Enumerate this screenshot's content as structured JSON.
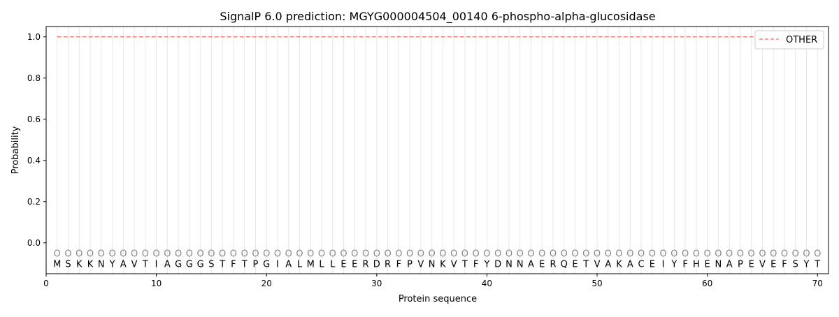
{
  "chart_data": {
    "type": "line",
    "title": "SignalP 6.0 prediction: MGYG000004504_00140 6-phospho-alpha-glucosidase",
    "xlabel": "Protein sequence",
    "ylabel": "Probability",
    "xlim": [
      0,
      71
    ],
    "ylim": [
      -0.15,
      1.05
    ],
    "xticks": [
      0,
      10,
      20,
      30,
      40,
      50,
      60,
      70
    ],
    "yticks": [
      0.0,
      0.2,
      0.4,
      0.6,
      0.8,
      1.0
    ],
    "ytick_labels": [
      "0.0",
      "0.2",
      "0.4",
      "0.6",
      "0.8",
      "1.0"
    ],
    "sequence": [
      "M",
      "S",
      "K",
      "K",
      "N",
      "Y",
      "A",
      "V",
      "T",
      "I",
      "A",
      "G",
      "G",
      "G",
      "S",
      "T",
      "F",
      "T",
      "P",
      "G",
      "I",
      "A",
      "L",
      "M",
      "L",
      "L",
      "E",
      "E",
      "R",
      "D",
      "R",
      "F",
      "P",
      "V",
      "N",
      "K",
      "V",
      "T",
      "F",
      "Y",
      "D",
      "N",
      "N",
      "A",
      "E",
      "R",
      "Q",
      "E",
      "T",
      "V",
      "A",
      "K",
      "A",
      "C",
      "E",
      "I",
      "Y",
      "F",
      "H",
      "E",
      "N",
      "A",
      "P",
      "E",
      "V",
      "E",
      "F",
      "S",
      "Y",
      "T"
    ],
    "predicted_label": "O",
    "series": [
      {
        "name": "OTHER",
        "color": "#f08080",
        "style": "dashed",
        "x_range": [
          1,
          70
        ],
        "value": 1.0
      }
    ],
    "legend": "top-right",
    "grid": "vertical lines at each residue"
  }
}
